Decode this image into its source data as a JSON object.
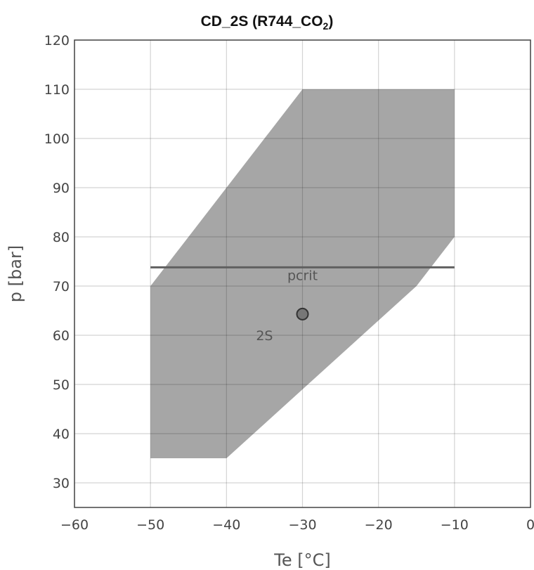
{
  "chart_data": {
    "type": "area",
    "title": "CD_2S (R744_CO",
    "title_subscript": "2",
    "title_suffix": ")",
    "xlabel": "Te [°C]",
    "ylabel": "p [bar]",
    "xlim": [
      -60,
      0
    ],
    "ylim": [
      25,
      120
    ],
    "x_ticks": [
      -60,
      -50,
      -40,
      -30,
      -20,
      -10,
      0
    ],
    "x_tick_labels": [
      "−60",
      "−50",
      "−40",
      "−30",
      "−20",
      "−10",
      "0"
    ],
    "y_ticks": [
      30,
      40,
      50,
      60,
      70,
      80,
      90,
      100,
      110,
      120
    ],
    "y_tick_labels": [
      "30",
      "40",
      "50",
      "60",
      "70",
      "80",
      "90",
      "100",
      "110",
      "120"
    ],
    "grid": true,
    "series": [
      {
        "name": "2S",
        "kind": "envelope",
        "color": "#a6a6a6",
        "x": [
          -50,
          -30,
          -10,
          -10,
          -15,
          -30,
          -40,
          -50
        ],
        "y": [
          70,
          110,
          110,
          80,
          70,
          49,
          35,
          35
        ]
      },
      {
        "name": "pcrit",
        "kind": "line",
        "color": "#606060",
        "x": [
          -50,
          -10
        ],
        "y": [
          73.8,
          73.8
        ]
      },
      {
        "name": "",
        "kind": "point",
        "color": "#777777",
        "x": [
          -30
        ],
        "y": [
          64.3
        ]
      }
    ],
    "annotations": [
      {
        "text": "pcrit",
        "x": -30,
        "y": 73.8
      },
      {
        "text": "2S",
        "x": -35,
        "y": 62
      }
    ]
  }
}
